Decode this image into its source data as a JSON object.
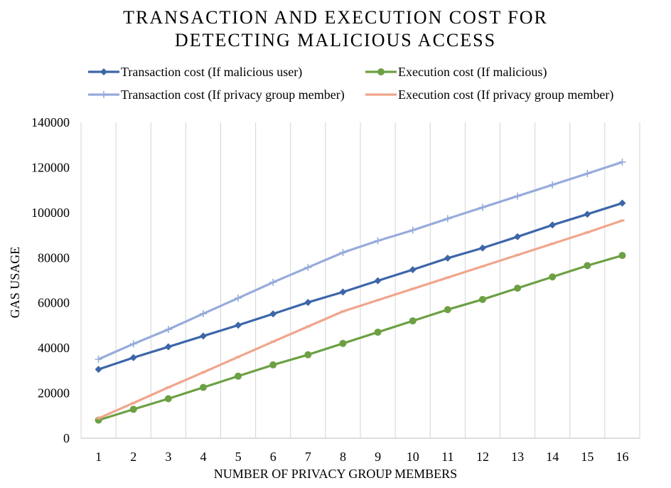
{
  "chart_data": {
    "type": "line",
    "title_line1": "TRANSACTION AND EXECUTION COST FOR",
    "title_line2": "DETECTING MALICIOUS ACCESS",
    "xlabel": "NUMBER OF PRIVACY GROUP MEMBERS",
    "ylabel": "GAS USAGE",
    "ylim": [
      0,
      140000
    ],
    "yticks": [
      0,
      20000,
      40000,
      60000,
      80000,
      100000,
      120000,
      140000
    ],
    "categories": [
      "1",
      "2",
      "3",
      "4",
      "5",
      "6",
      "7",
      "8",
      "9",
      "10",
      "11",
      "12",
      "13",
      "14",
      "15",
      "16"
    ],
    "grid": "vertical",
    "legend_position": "top",
    "series": [
      {
        "name": "Transaction cost (If malicious user)",
        "color": "#3d66a8",
        "marker": "diamond",
        "values": [
          30500,
          35700,
          40500,
          45300,
          50100,
          55100,
          60200,
          64800,
          69800,
          74700,
          79800,
          84300,
          89300,
          94500,
          99300,
          104200
        ]
      },
      {
        "name": "Execution cost (If malicious)",
        "color": "#6ca043",
        "marker": "circle",
        "values": [
          8000,
          12800,
          17500,
          22500,
          27500,
          32500,
          37000,
          42000,
          47000,
          52000,
          57000,
          61500,
          66500,
          71500,
          76500,
          81000
        ]
      },
      {
        "name": "Transaction cost (If privacy group member)",
        "color": "#96abdb",
        "marker": "plus",
        "values": [
          35000,
          41800,
          48200,
          55200,
          62100,
          69100,
          75700,
          82300,
          87500,
          92200,
          97300,
          102300,
          107300,
          112300,
          117300,
          122400
        ]
      },
      {
        "name": "Execution cost (If privacy group member)",
        "color": "#f0a58c",
        "marker": "dash",
        "values": [
          8800,
          15600,
          22500,
          29200,
          36000,
          42800,
          49500,
          56200,
          61200,
          66200,
          71200,
          76200,
          81200,
          86200,
          91200,
          96500
        ]
      }
    ]
  }
}
